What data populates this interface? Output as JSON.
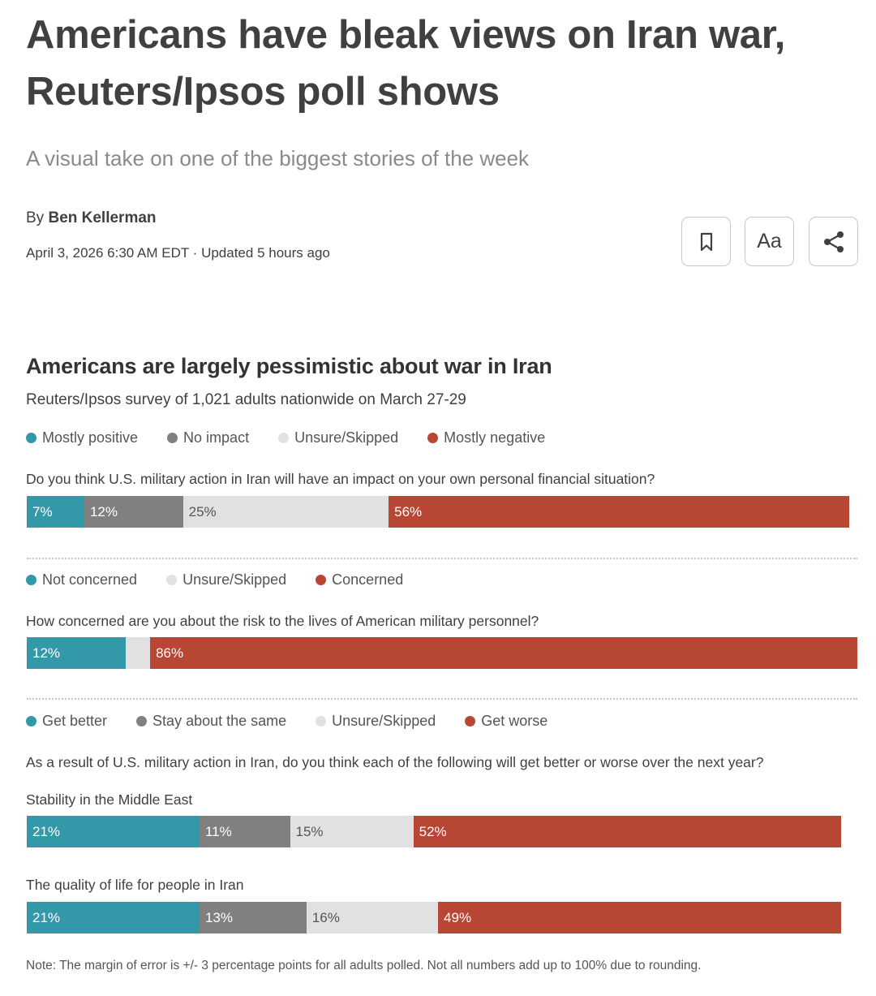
{
  "article": {
    "headline": "Americans have bleak views on Iran war, Reuters/Ipsos poll shows",
    "dek": "A visual take on one of the biggest stories of the week",
    "by_prefix": "By",
    "author": "Ben Kellerman",
    "dateline": "April 3, 2026 6:30 AM EDT · Updated 5 hours ago"
  },
  "toolbar": {
    "text_size_label": "Aa",
    "icons": [
      "bookmark-icon",
      "share-icon"
    ]
  },
  "colors": {
    "teal": "#3399a8",
    "gray": "#808080",
    "light": "#e1e1e1",
    "red": "#b84634"
  },
  "chart_data": {
    "type": "bar",
    "orientation": "horizontal",
    "stacked": true,
    "title": "Americans are largely pessimistic about war in Iran",
    "subtitle": "Reuters/Ipsos survey of 1,021 adults nationwide on March 27-29",
    "sections": [
      {
        "legend": [
          {
            "name": "Mostly positive",
            "color": "#3399a8"
          },
          {
            "name": "No impact",
            "color": "#808080"
          },
          {
            "name": "Unsure/Skipped",
            "color": "#e1e1e1"
          },
          {
            "name": "Mostly negative",
            "color": "#b84634"
          }
        ],
        "question": "Do you think U.S. military action in Iran will have an impact on your own personal financial situation?",
        "rows": [
          {
            "label": "",
            "values": [
              7,
              12,
              25,
              56
            ],
            "labels": [
              "7%",
              "12%",
              "25%",
              "56%"
            ]
          }
        ]
      },
      {
        "legend": [
          {
            "name": "Not concerned",
            "color": "#3399a8"
          },
          {
            "name": "Unsure/Skipped",
            "color": "#e1e1e1"
          },
          {
            "name": "Concerned",
            "color": "#b84634"
          }
        ],
        "question": "How concerned are you about the risk to the lives of American military personnel?",
        "rows": [
          {
            "label": "",
            "values": [
              12,
              3,
              86
            ],
            "labels": [
              "12%",
              "",
              "86%"
            ]
          }
        ]
      },
      {
        "legend": [
          {
            "name": "Get better",
            "color": "#3399a8"
          },
          {
            "name": "Stay about the same",
            "color": "#808080"
          },
          {
            "name": "Unsure/Skipped",
            "color": "#e1e1e1"
          },
          {
            "name": "Get worse",
            "color": "#b84634"
          }
        ],
        "question": "As a result of U.S. military action in Iran, do you think each of the following will get better or worse over the next year?",
        "rows": [
          {
            "label": "Stability in the Middle East",
            "values": [
              21,
              11,
              15,
              52
            ],
            "labels": [
              "21%",
              "11%",
              "15%",
              "52%"
            ]
          },
          {
            "label": "The quality of life for people in Iran",
            "values": [
              21,
              13,
              16,
              49
            ],
            "labels": [
              "21%",
              "13%",
              "16%",
              "49%"
            ]
          }
        ]
      }
    ],
    "note": "Note:  The margin of error is +/- 3 percentage points for all adults polled. Not all numbers add up to 100% due to rounding."
  }
}
